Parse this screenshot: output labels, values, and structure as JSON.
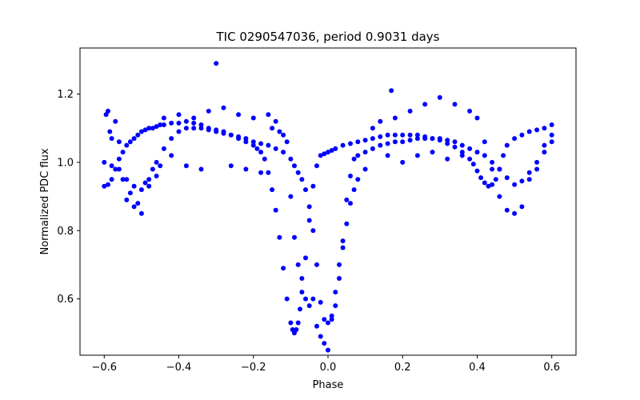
{
  "chart_data": {
    "type": "scatter",
    "title": "TIC 0290547036, period 0.9031 days",
    "xlabel": "Phase",
    "ylabel": "Normalized PDC flux",
    "xlim": [
      -0.665,
      0.665
    ],
    "ylim": [
      0.435,
      1.335
    ],
    "xticks": [
      -0.6,
      -0.4,
      -0.2,
      0.0,
      0.2,
      0.4,
      0.6
    ],
    "xtick_labels": [
      "−0.6",
      "−0.4",
      "−0.2",
      "0.0",
      "0.2",
      "0.4",
      "0.6"
    ],
    "yticks": [
      0.6,
      0.8,
      1.0,
      1.2
    ],
    "ytick_labels": [
      "0.6",
      "0.8",
      "1.0",
      "1.2"
    ],
    "grid": false,
    "legend": "none",
    "marker_color": "#0000ff",
    "series": [
      {
        "x": [
          -0.6,
          -0.59,
          -0.58,
          -0.57,
          -0.56,
          -0.55,
          -0.54,
          -0.53,
          -0.52,
          -0.51,
          -0.5,
          -0.49,
          -0.48,
          -0.47,
          -0.46,
          -0.45,
          -0.44,
          -0.42,
          -0.4,
          -0.38,
          -0.36,
          -0.34,
          -0.32,
          -0.3,
          -0.28,
          -0.26,
          -0.24,
          -0.22,
          -0.2,
          -0.19,
          -0.18,
          -0.17,
          -0.16,
          -0.15,
          -0.14,
          -0.13,
          -0.12,
          -0.11,
          -0.1,
          -0.095,
          -0.09,
          -0.085,
          -0.08,
          -0.075,
          -0.07,
          -0.06,
          -0.05,
          -0.04,
          -0.03,
          -0.02,
          -0.01,
          0.0,
          0.01,
          0.02,
          0.04,
          0.06,
          0.08,
          0.1,
          0.12,
          0.14,
          0.16,
          0.18,
          0.2,
          0.22,
          0.24,
          0.26,
          0.28,
          0.3,
          0.32,
          0.34,
          0.36,
          0.38,
          0.39,
          0.4,
          0.41,
          0.42,
          0.43,
          0.44,
          0.45,
          0.46,
          0.47,
          0.48,
          0.5,
          0.52,
          0.54,
          0.56,
          0.58,
          0.6
        ],
        "y": [
          0.93,
          0.935,
          0.95,
          0.98,
          1.01,
          1.03,
          1.05,
          1.06,
          1.07,
          1.08,
          1.09,
          1.095,
          1.1,
          1.1,
          1.105,
          1.11,
          1.11,
          1.115,
          1.115,
          1.12,
          1.115,
          1.11,
          1.1,
          1.095,
          1.09,
          1.08,
          1.07,
          1.06,
          1.05,
          1.04,
          1.03,
          1.01,
          0.97,
          0.92,
          0.86,
          0.78,
          0.69,
          0.6,
          0.53,
          0.51,
          0.5,
          0.51,
          0.53,
          0.57,
          0.62,
          0.72,
          0.83,
          0.93,
          0.99,
          1.02,
          1.025,
          1.03,
          1.035,
          1.04,
          1.05,
          1.055,
          1.06,
          1.065,
          1.07,
          1.075,
          1.08,
          1.08,
          1.08,
          1.08,
          1.08,
          1.075,
          1.07,
          1.065,
          1.055,
          1.045,
          1.03,
          1.01,
          0.995,
          0.975,
          0.955,
          0.94,
          0.93,
          0.935,
          0.95,
          0.98,
          1.02,
          1.05,
          1.07,
          1.08,
          1.09,
          1.095,
          1.1,
          1.11
        ]
      },
      {
        "x": [
          -0.6,
          -0.58,
          -0.56,
          -0.54,
          -0.52,
          -0.5,
          -0.48,
          -0.46,
          -0.44,
          -0.42,
          -0.4,
          -0.38,
          -0.36,
          -0.34,
          -0.32,
          -0.3,
          -0.28,
          -0.26,
          -0.24,
          -0.22,
          -0.2,
          -0.18,
          -0.16,
          -0.14,
          -0.12,
          -0.1,
          -0.09,
          -0.08,
          -0.07,
          -0.06,
          -0.05,
          -0.04,
          -0.03,
          -0.02,
          -0.01,
          0.0,
          0.01,
          0.02,
          0.03,
          0.04,
          0.05,
          0.06,
          0.07,
          0.08,
          0.1,
          0.12,
          0.14,
          0.16,
          0.18,
          0.2,
          0.22,
          0.24,
          0.26,
          0.28,
          0.3,
          0.32,
          0.34,
          0.36,
          0.38,
          0.4,
          0.42,
          0.44,
          0.46,
          0.48,
          0.5,
          0.52,
          0.54,
          0.56,
          0.58,
          0.6
        ],
        "y": [
          1.0,
          0.99,
          0.98,
          0.95,
          0.93,
          0.92,
          0.95,
          1.0,
          1.04,
          1.07,
          1.09,
          1.1,
          1.1,
          1.1,
          1.095,
          1.09,
          1.085,
          1.08,
          1.075,
          1.07,
          1.06,
          1.055,
          1.05,
          1.04,
          1.03,
          1.01,
          0.99,
          0.97,
          0.95,
          0.92,
          0.87,
          0.8,
          0.7,
          0.59,
          0.54,
          0.53,
          0.54,
          0.58,
          0.66,
          0.77,
          0.89,
          0.96,
          1.01,
          1.02,
          1.03,
          1.04,
          1.05,
          1.055,
          1.06,
          1.06,
          1.065,
          1.07,
          1.07,
          1.07,
          1.07,
          1.065,
          1.06,
          1.05,
          1.04,
          1.03,
          1.02,
          1.0,
          0.98,
          0.955,
          0.935,
          0.945,
          0.97,
          1.0,
          1.03,
          1.06
        ]
      },
      {
        "x": [
          -0.595,
          -0.59,
          -0.585,
          -0.58,
          -0.57,
          -0.56,
          -0.55,
          -0.54,
          -0.53,
          -0.52,
          -0.51,
          -0.5,
          -0.49,
          -0.48,
          -0.47,
          -0.46,
          -0.45,
          -0.44,
          -0.42,
          -0.4,
          -0.38,
          -0.36,
          -0.34,
          -0.32,
          -0.3,
          -0.28,
          -0.26,
          -0.24,
          -0.22,
          -0.2,
          -0.18,
          -0.16,
          -0.15,
          -0.14,
          -0.13,
          -0.12,
          -0.11,
          -0.1,
          -0.09,
          -0.08,
          -0.07,
          -0.06,
          -0.05,
          -0.04,
          -0.03,
          -0.02,
          -0.01,
          0.0,
          0.01,
          0.02,
          0.03,
          0.04,
          0.05,
          0.06,
          0.07,
          0.08,
          0.1,
          0.12,
          0.14,
          0.16,
          0.17,
          0.18,
          0.2,
          0.22,
          0.24,
          0.26,
          0.28,
          0.3,
          0.32,
          0.34,
          0.36,
          0.38,
          0.4,
          0.42,
          0.44,
          0.46,
          0.48,
          0.5,
          0.52,
          0.54,
          0.56,
          0.58,
          0.6
        ],
        "y": [
          1.14,
          1.15,
          1.09,
          1.07,
          1.12,
          1.06,
          0.95,
          0.89,
          0.91,
          0.87,
          0.88,
          0.85,
          0.94,
          0.93,
          0.98,
          0.96,
          0.99,
          1.13,
          1.02,
          1.14,
          0.99,
          1.13,
          0.98,
          1.15,
          1.29,
          1.16,
          0.99,
          1.14,
          0.98,
          1.13,
          0.97,
          1.14,
          1.1,
          1.12,
          1.09,
          1.08,
          1.06,
          0.9,
          0.78,
          0.7,
          0.66,
          0.6,
          0.58,
          0.6,
          0.52,
          0.49,
          0.47,
          0.45,
          0.55,
          0.62,
          0.7,
          0.75,
          0.82,
          0.88,
          0.92,
          0.95,
          0.98,
          1.1,
          1.12,
          1.02,
          1.21,
          1.13,
          1.0,
          1.15,
          1.02,
          1.17,
          1.03,
          1.19,
          1.01,
          1.17,
          1.02,
          1.15,
          1.13,
          1.06,
          0.98,
          0.9,
          0.86,
          0.85,
          0.87,
          0.95,
          0.98,
          1.05,
          1.08
        ]
      }
    ]
  }
}
